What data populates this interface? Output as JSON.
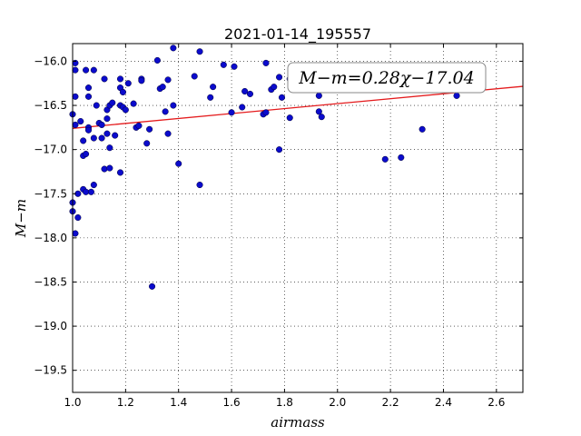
{
  "chart_data": {
    "type": "scatter",
    "title": "2021-01-14_195557",
    "xlabel": "airmass",
    "ylabel": "M−m",
    "xlim": [
      1.0,
      2.7
    ],
    "ylim": [
      -19.75,
      -15.8
    ],
    "y_inverted": true,
    "grid": true,
    "x_ticks": [
      1.0,
      1.2,
      1.4,
      1.6,
      1.8,
      2.0,
      2.2,
      2.4,
      2.6
    ],
    "x_tick_labels": [
      "1.0",
      "1.2",
      "1.4",
      "1.6",
      "1.8",
      "2.0",
      "2.2",
      "2.4",
      "2.6"
    ],
    "y_ticks": [
      -16.0,
      -16.5,
      -17.0,
      -17.5,
      -18.0,
      -18.5,
      -19.0,
      -19.5
    ],
    "y_tick_labels": [
      "−16.0",
      "−16.5",
      "−17.0",
      "−17.5",
      "−18.0",
      "−18.5",
      "−19.0",
      "−19.5"
    ],
    "annotation": "M−m=0.28χ−17.04",
    "fit": {
      "slope": 0.28,
      "intercept": -17.04,
      "color": "#e41a1c"
    },
    "point_color": "#0b0bcc",
    "points": [
      [
        1.01,
        -16.02
      ],
      [
        1.01,
        -16.1
      ],
      [
        1.01,
        -16.4
      ],
      [
        1.0,
        -16.6
      ],
      [
        1.01,
        -16.72
      ],
      [
        1.03,
        -16.68
      ],
      [
        1.05,
        -16.1
      ],
      [
        1.06,
        -16.3
      ],
      [
        1.06,
        -16.4
      ],
      [
        1.08,
        -16.1
      ],
      [
        1.09,
        -16.5
      ],
      [
        1.06,
        -16.75
      ],
      [
        1.06,
        -16.78
      ],
      [
        1.04,
        -16.9
      ],
      [
        1.08,
        -16.87
      ],
      [
        1.04,
        -17.07
      ],
      [
        1.05,
        -17.05
      ],
      [
        1.1,
        -16.7
      ],
      [
        1.11,
        -16.72
      ],
      [
        1.11,
        -16.87
      ],
      [
        1.13,
        -16.82
      ],
      [
        1.12,
        -16.2
      ],
      [
        1.13,
        -16.65
      ],
      [
        1.13,
        -16.55
      ],
      [
        1.14,
        -16.5
      ],
      [
        1.15,
        -16.47
      ],
      [
        1.14,
        -16.98
      ],
      [
        1.16,
        -16.84
      ],
      [
        1.18,
        -16.2
      ],
      [
        1.18,
        -16.3
      ],
      [
        1.19,
        -16.35
      ],
      [
        1.18,
        -16.5
      ],
      [
        1.19,
        -16.52
      ],
      [
        1.2,
        -16.55
      ],
      [
        1.21,
        -16.25
      ],
      [
        1.23,
        -16.48
      ],
      [
        1.24,
        -16.75
      ],
      [
        1.25,
        -16.73
      ],
      [
        1.26,
        -16.2
      ],
      [
        1.26,
        -16.22
      ],
      [
        1.28,
        -16.93
      ],
      [
        1.29,
        -16.77
      ],
      [
        1.32,
        -15.99
      ],
      [
        1.33,
        -16.31
      ],
      [
        1.34,
        -16.29
      ],
      [
        1.35,
        -16.57
      ],
      [
        1.36,
        -16.21
      ],
      [
        1.36,
        -16.82
      ],
      [
        1.38,
        -15.85
      ],
      [
        1.38,
        -16.5
      ],
      [
        1.4,
        -17.16
      ],
      [
        1.46,
        -16.17
      ],
      [
        1.48,
        -15.89
      ],
      [
        1.48,
        -17.4
      ],
      [
        1.52,
        -16.41
      ],
      [
        1.53,
        -16.29
      ],
      [
        1.57,
        -16.04
      ],
      [
        1.6,
        -16.58
      ],
      [
        1.61,
        -16.06
      ],
      [
        1.64,
        -16.52
      ],
      [
        1.65,
        -16.34
      ],
      [
        1.67,
        -16.37
      ],
      [
        1.72,
        -16.6
      ],
      [
        1.73,
        -16.58
      ],
      [
        1.73,
        -16.02
      ],
      [
        1.75,
        -16.32
      ],
      [
        1.76,
        -16.29
      ],
      [
        1.78,
        -17.0
      ],
      [
        1.78,
        -16.18
      ],
      [
        1.79,
        -16.41
      ],
      [
        1.82,
        -16.64
      ],
      [
        1.82,
        -16.2
      ],
      [
        1.93,
        -16.39
      ],
      [
        1.93,
        -16.57
      ],
      [
        1.94,
        -16.63
      ],
      [
        1.12,
        -17.22
      ],
      [
        1.14,
        -17.21
      ],
      [
        1.18,
        -17.26
      ],
      [
        1.02,
        -17.5
      ],
      [
        1.04,
        -17.45
      ],
      [
        1.05,
        -17.48
      ],
      [
        1.07,
        -17.48
      ],
      [
        1.08,
        -17.4
      ],
      [
        1.0,
        -17.6
      ],
      [
        1.0,
        -17.7
      ],
      [
        1.02,
        -17.77
      ],
      [
        1.01,
        -17.95
      ],
      [
        1.3,
        -18.55
      ],
      [
        2.18,
        -17.11
      ],
      [
        2.24,
        -17.09
      ],
      [
        2.32,
        -16.77
      ],
      [
        2.45,
        -16.39
      ]
    ]
  }
}
